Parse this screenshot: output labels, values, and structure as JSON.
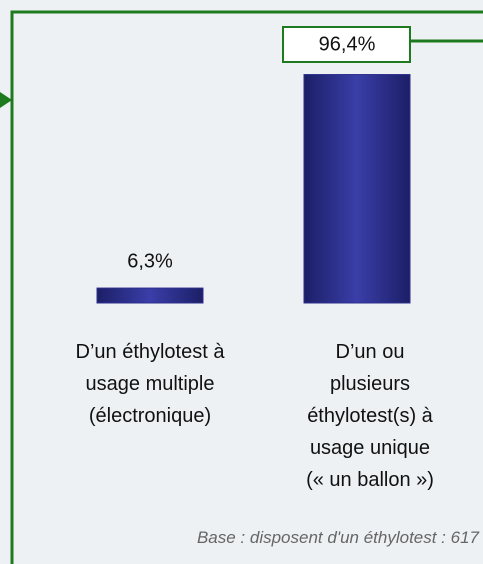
{
  "chart_data": {
    "type": "bar",
    "categories": [
      "D’un éthylotest à\nusage multiple\n(électronique)",
      "D’un ou\nplusieurs\néthylotest(s) à\nusage unique\n(« un ballon »)"
    ],
    "values": [
      6.3,
      96.4
    ],
    "value_labels": [
      "6,3%",
      "96,4%"
    ],
    "color": "#2c2f8c",
    "annotation": "Base : disposent d'un éthylotest : 617"
  }
}
